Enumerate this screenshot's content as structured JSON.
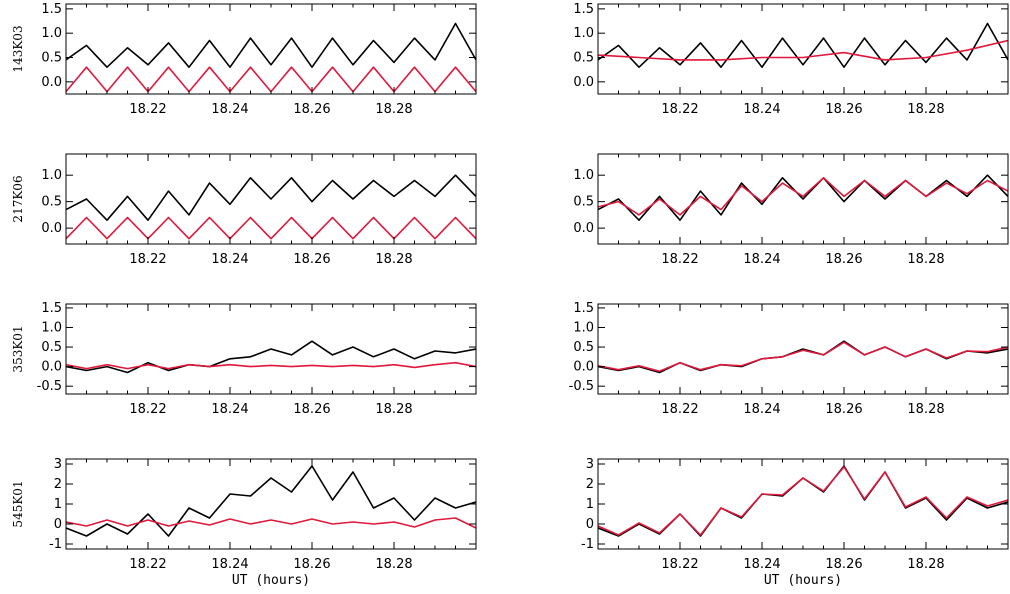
{
  "colors": {
    "black_series": "#000000",
    "red_series": "#e0183c",
    "axes": "#000000"
  },
  "x_axis": {
    "ticks": [
      18.22,
      18.24,
      18.26,
      18.28
    ],
    "tick_labels": [
      "18.22",
      "18.24",
      "18.26",
      "18.28"
    ],
    "xlabel": "UT (hours)",
    "xlim": [
      18.2,
      18.3
    ]
  },
  "chart_data": [
    {
      "type": "line",
      "row": 1,
      "column": "left",
      "ylabel": "143K03",
      "xlabel": "",
      "ylim": [
        -0.25,
        1.6
      ],
      "yticks": [
        0.0,
        0.5,
        1.0,
        1.5
      ],
      "ytick_labels": [
        "0.0",
        "0.5",
        "1.0",
        "1.5"
      ],
      "series": [
        {
          "color": "#000000",
          "x": [
            18.2,
            18.205,
            18.21,
            18.215,
            18.22,
            18.225,
            18.23,
            18.235,
            18.24,
            18.245,
            18.25,
            18.255,
            18.26,
            18.265,
            18.27,
            18.275,
            18.28,
            18.285,
            18.29,
            18.295,
            18.3
          ],
          "y": [
            0.45,
            0.75,
            0.3,
            0.7,
            0.35,
            0.8,
            0.3,
            0.85,
            0.3,
            0.9,
            0.35,
            0.9,
            0.3,
            0.9,
            0.35,
            0.85,
            0.4,
            0.9,
            0.45,
            1.2,
            0.45
          ]
        },
        {
          "color": "#e0183c",
          "x": [
            18.2,
            18.2025,
            18.205,
            18.2075,
            18.21,
            18.2125,
            18.215,
            18.2175,
            18.22,
            18.2225,
            18.225,
            18.2275,
            18.23,
            18.2325,
            18.235,
            18.2375,
            18.24,
            18.2425,
            18.245,
            18.2475,
            18.25,
            18.2525,
            18.255,
            18.2575,
            18.26,
            18.2625,
            18.265,
            18.2675,
            18.27,
            18.2725,
            18.275,
            18.2775,
            18.28,
            18.2825,
            18.285,
            18.2875,
            18.29,
            18.2925,
            18.295,
            18.2975,
            18.3
          ],
          "y": [
            -0.2,
            0.05,
            0.3,
            0.05,
            -0.2,
            0.05,
            0.3,
            0.05,
            -0.2,
            0.05,
            0.3,
            0.05,
            -0.2,
            0.05,
            0.3,
            0.05,
            -0.2,
            0.05,
            0.3,
            0.05,
            -0.2,
            0.05,
            0.3,
            0.05,
            -0.2,
            0.05,
            0.3,
            0.05,
            -0.2,
            0.05,
            0.3,
            0.05,
            -0.2,
            0.05,
            0.3,
            0.05,
            -0.2,
            0.05,
            0.3,
            0.05,
            -0.2
          ]
        }
      ]
    },
    {
      "type": "line",
      "row": 1,
      "column": "right",
      "ylabel": "",
      "xlabel": "",
      "ylim": [
        -0.25,
        1.6
      ],
      "yticks": [
        0.0,
        0.5,
        1.0,
        1.5
      ],
      "ytick_labels": [
        "0.0",
        "0.5",
        "1.0",
        "1.5"
      ],
      "series": [
        {
          "color": "#000000",
          "x": [
            18.2,
            18.205,
            18.21,
            18.215,
            18.22,
            18.225,
            18.23,
            18.235,
            18.24,
            18.245,
            18.25,
            18.255,
            18.26,
            18.265,
            18.27,
            18.275,
            18.28,
            18.285,
            18.29,
            18.295,
            18.3
          ],
          "y": [
            0.45,
            0.75,
            0.3,
            0.7,
            0.35,
            0.8,
            0.3,
            0.85,
            0.3,
            0.9,
            0.35,
            0.9,
            0.3,
            0.9,
            0.35,
            0.85,
            0.4,
            0.9,
            0.45,
            1.2,
            0.45
          ]
        },
        {
          "color": "#e0183c",
          "x": [
            18.2,
            18.21,
            18.22,
            18.23,
            18.24,
            18.25,
            18.26,
            18.27,
            18.28,
            18.29,
            18.3
          ],
          "y": [
            0.55,
            0.5,
            0.45,
            0.45,
            0.5,
            0.5,
            0.6,
            0.45,
            0.5,
            0.65,
            0.85
          ]
        }
      ]
    },
    {
      "type": "line",
      "row": 2,
      "column": "left",
      "ylabel": "217K06",
      "xlabel": "",
      "ylim": [
        -0.3,
        1.4
      ],
      "yticks": [
        0.0,
        0.5,
        1.0
      ],
      "ytick_labels": [
        "0.0",
        "0.5",
        "1.0"
      ],
      "series": [
        {
          "color": "#000000",
          "x": [
            18.2,
            18.205,
            18.21,
            18.215,
            18.22,
            18.225,
            18.23,
            18.235,
            18.24,
            18.245,
            18.25,
            18.255,
            18.26,
            18.265,
            18.27,
            18.275,
            18.28,
            18.285,
            18.29,
            18.295,
            18.3
          ],
          "y": [
            0.35,
            0.55,
            0.15,
            0.6,
            0.15,
            0.7,
            0.25,
            0.85,
            0.45,
            0.95,
            0.55,
            0.95,
            0.5,
            0.9,
            0.55,
            0.9,
            0.6,
            0.9,
            0.6,
            1.0,
            0.6
          ]
        },
        {
          "color": "#e0183c",
          "x": [
            18.2,
            18.2025,
            18.205,
            18.2075,
            18.21,
            18.2125,
            18.215,
            18.2175,
            18.22,
            18.2225,
            18.225,
            18.2275,
            18.23,
            18.2325,
            18.235,
            18.2375,
            18.24,
            18.2425,
            18.245,
            18.2475,
            18.25,
            18.2525,
            18.255,
            18.2575,
            18.26,
            18.2625,
            18.265,
            18.2675,
            18.27,
            18.2725,
            18.275,
            18.2775,
            18.28,
            18.2825,
            18.285,
            18.2875,
            18.29,
            18.2925,
            18.295,
            18.2975,
            18.3
          ],
          "y": [
            -0.2,
            0.0,
            0.2,
            0.0,
            -0.2,
            0.0,
            0.2,
            0.0,
            -0.2,
            0.0,
            0.2,
            0.0,
            -0.2,
            0.0,
            0.2,
            0.0,
            -0.2,
            0.0,
            0.2,
            0.0,
            -0.2,
            0.0,
            0.2,
            0.0,
            -0.2,
            0.0,
            0.2,
            0.0,
            -0.2,
            0.0,
            0.2,
            0.0,
            -0.2,
            0.0,
            0.2,
            0.0,
            -0.2,
            0.0,
            0.2,
            0.0,
            -0.2
          ]
        }
      ]
    },
    {
      "type": "line",
      "row": 2,
      "column": "right",
      "ylabel": "",
      "xlabel": "",
      "ylim": [
        -0.3,
        1.4
      ],
      "yticks": [
        0.0,
        0.5,
        1.0
      ],
      "ytick_labels": [
        "0.0",
        "0.5",
        "1.0"
      ],
      "series": [
        {
          "color": "#000000",
          "x": [
            18.2,
            18.205,
            18.21,
            18.215,
            18.22,
            18.225,
            18.23,
            18.235,
            18.24,
            18.245,
            18.25,
            18.255,
            18.26,
            18.265,
            18.27,
            18.275,
            18.28,
            18.285,
            18.29,
            18.295,
            18.3
          ],
          "y": [
            0.35,
            0.55,
            0.15,
            0.6,
            0.15,
            0.7,
            0.25,
            0.85,
            0.45,
            0.95,
            0.55,
            0.95,
            0.5,
            0.9,
            0.55,
            0.9,
            0.6,
            0.9,
            0.6,
            1.0,
            0.6
          ]
        },
        {
          "color": "#e0183c",
          "x": [
            18.2,
            18.205,
            18.21,
            18.215,
            18.22,
            18.225,
            18.23,
            18.235,
            18.24,
            18.245,
            18.25,
            18.255,
            18.26,
            18.265,
            18.27,
            18.275,
            18.28,
            18.285,
            18.29,
            18.295,
            18.3
          ],
          "y": [
            0.4,
            0.5,
            0.25,
            0.55,
            0.25,
            0.6,
            0.35,
            0.8,
            0.5,
            0.85,
            0.6,
            0.95,
            0.6,
            0.9,
            0.6,
            0.9,
            0.6,
            0.85,
            0.65,
            0.9,
            0.7
          ]
        }
      ]
    },
    {
      "type": "line",
      "row": 3,
      "column": "left",
      "ylabel": "353K01",
      "xlabel": "",
      "ylim": [
        -0.7,
        1.6
      ],
      "yticks": [
        -0.5,
        0.0,
        0.5,
        1.0,
        1.5
      ],
      "ytick_labels": [
        "-0.5",
        "0.0",
        "0.5",
        "1.0",
        "1.5"
      ],
      "series": [
        {
          "color": "#000000",
          "x": [
            18.2,
            18.205,
            18.21,
            18.215,
            18.22,
            18.225,
            18.23,
            18.235,
            18.24,
            18.245,
            18.25,
            18.255,
            18.26,
            18.265,
            18.27,
            18.275,
            18.28,
            18.285,
            18.29,
            18.295,
            18.3
          ],
          "y": [
            0.0,
            -0.1,
            0.0,
            -0.15,
            0.1,
            -0.1,
            0.05,
            0.0,
            0.2,
            0.25,
            0.45,
            0.3,
            0.65,
            0.3,
            0.5,
            0.25,
            0.45,
            0.2,
            0.4,
            0.35,
            0.45
          ]
        },
        {
          "color": "#e0183c",
          "x": [
            18.2,
            18.205,
            18.21,
            18.215,
            18.22,
            18.225,
            18.23,
            18.235,
            18.24,
            18.245,
            18.25,
            18.255,
            18.26,
            18.265,
            18.27,
            18.275,
            18.28,
            18.285,
            18.29,
            18.295,
            18.3
          ],
          "y": [
            0.05,
            -0.05,
            0.05,
            -0.05,
            0.05,
            -0.05,
            0.05,
            0.0,
            0.05,
            0.0,
            0.03,
            0.0,
            0.03,
            0.0,
            0.03,
            0.0,
            0.05,
            -0.02,
            0.05,
            0.1,
            0.0
          ]
        }
      ]
    },
    {
      "type": "line",
      "row": 3,
      "column": "right",
      "ylabel": "",
      "xlabel": "",
      "ylim": [
        -0.7,
        1.6
      ],
      "yticks": [
        -0.5,
        0.0,
        0.5,
        1.0,
        1.5
      ],
      "ytick_labels": [
        "-0.5",
        "0.0",
        "0.5",
        "1.0",
        "1.5"
      ],
      "series": [
        {
          "color": "#000000",
          "x": [
            18.2,
            18.205,
            18.21,
            18.215,
            18.22,
            18.225,
            18.23,
            18.235,
            18.24,
            18.245,
            18.25,
            18.255,
            18.26,
            18.265,
            18.27,
            18.275,
            18.28,
            18.285,
            18.29,
            18.295,
            18.3
          ],
          "y": [
            0.0,
            -0.1,
            0.0,
            -0.15,
            0.1,
            -0.1,
            0.05,
            0.0,
            0.2,
            0.25,
            0.45,
            0.3,
            0.65,
            0.3,
            0.5,
            0.25,
            0.45,
            0.2,
            0.4,
            0.35,
            0.45
          ]
        },
        {
          "color": "#e0183c",
          "x": [
            18.2,
            18.205,
            18.21,
            18.215,
            18.22,
            18.225,
            18.23,
            18.235,
            18.24,
            18.245,
            18.25,
            18.255,
            18.26,
            18.265,
            18.27,
            18.275,
            18.28,
            18.285,
            18.29,
            18.295,
            18.3
          ],
          "y": [
            0.02,
            -0.08,
            0.02,
            -0.12,
            0.1,
            -0.08,
            0.05,
            0.02,
            0.2,
            0.25,
            0.42,
            0.3,
            0.62,
            0.3,
            0.5,
            0.25,
            0.45,
            0.22,
            0.4,
            0.38,
            0.5
          ]
        }
      ]
    },
    {
      "type": "line",
      "row": 4,
      "column": "left",
      "ylabel": "545K01",
      "xlabel": "UT (hours)",
      "ylim": [
        -1.25,
        3.25
      ],
      "yticks": [
        -1,
        0,
        1,
        2,
        3
      ],
      "ytick_labels": [
        "-1",
        "0",
        "1",
        "2",
        "3"
      ],
      "series": [
        {
          "color": "#000000",
          "x": [
            18.2,
            18.205,
            18.21,
            18.215,
            18.22,
            18.225,
            18.23,
            18.235,
            18.24,
            18.245,
            18.25,
            18.255,
            18.26,
            18.265,
            18.27,
            18.275,
            18.28,
            18.285,
            18.29,
            18.295,
            18.3
          ],
          "y": [
            -0.2,
            -0.6,
            0.0,
            -0.5,
            0.5,
            -0.6,
            0.8,
            0.3,
            1.5,
            1.4,
            2.3,
            1.6,
            2.9,
            1.2,
            2.6,
            0.8,
            1.3,
            0.2,
            1.3,
            0.8,
            1.1
          ]
        },
        {
          "color": "#e0183c",
          "x": [
            18.2,
            18.205,
            18.21,
            18.215,
            18.22,
            18.225,
            18.23,
            18.235,
            18.24,
            18.245,
            18.25,
            18.255,
            18.26,
            18.265,
            18.27,
            18.275,
            18.28,
            18.285,
            18.29,
            18.295,
            18.3
          ],
          "y": [
            0.1,
            -0.1,
            0.2,
            -0.1,
            0.2,
            -0.1,
            0.15,
            -0.05,
            0.25,
            0.0,
            0.2,
            0.0,
            0.25,
            0.0,
            0.1,
            0.0,
            0.1,
            -0.15,
            0.2,
            0.3,
            -0.2
          ]
        }
      ]
    },
    {
      "type": "line",
      "row": 4,
      "column": "right",
      "ylabel": "",
      "xlabel": "UT (hours)",
      "ylim": [
        -1.25,
        3.25
      ],
      "yticks": [
        -1,
        0,
        1,
        2,
        3
      ],
      "ytick_labels": [
        "-1",
        "0",
        "1",
        "2",
        "3"
      ],
      "series": [
        {
          "color": "#000000",
          "x": [
            18.2,
            18.205,
            18.21,
            18.215,
            18.22,
            18.225,
            18.23,
            18.235,
            18.24,
            18.245,
            18.25,
            18.255,
            18.26,
            18.265,
            18.27,
            18.275,
            18.28,
            18.285,
            18.29,
            18.295,
            18.3
          ],
          "y": [
            -0.2,
            -0.6,
            0.0,
            -0.5,
            0.5,
            -0.6,
            0.8,
            0.3,
            1.5,
            1.4,
            2.3,
            1.6,
            2.9,
            1.2,
            2.6,
            0.8,
            1.3,
            0.2,
            1.3,
            0.8,
            1.1
          ]
        },
        {
          "color": "#e0183c",
          "x": [
            18.2,
            18.205,
            18.21,
            18.215,
            18.22,
            18.225,
            18.23,
            18.235,
            18.24,
            18.245,
            18.25,
            18.255,
            18.26,
            18.265,
            18.27,
            18.275,
            18.28,
            18.285,
            18.29,
            18.295,
            18.3
          ],
          "y": [
            -0.1,
            -0.55,
            0.05,
            -0.45,
            0.5,
            -0.55,
            0.8,
            0.35,
            1.5,
            1.45,
            2.3,
            1.65,
            2.85,
            1.25,
            2.6,
            0.85,
            1.35,
            0.3,
            1.35,
            0.9,
            1.2
          ]
        }
      ]
    }
  ]
}
